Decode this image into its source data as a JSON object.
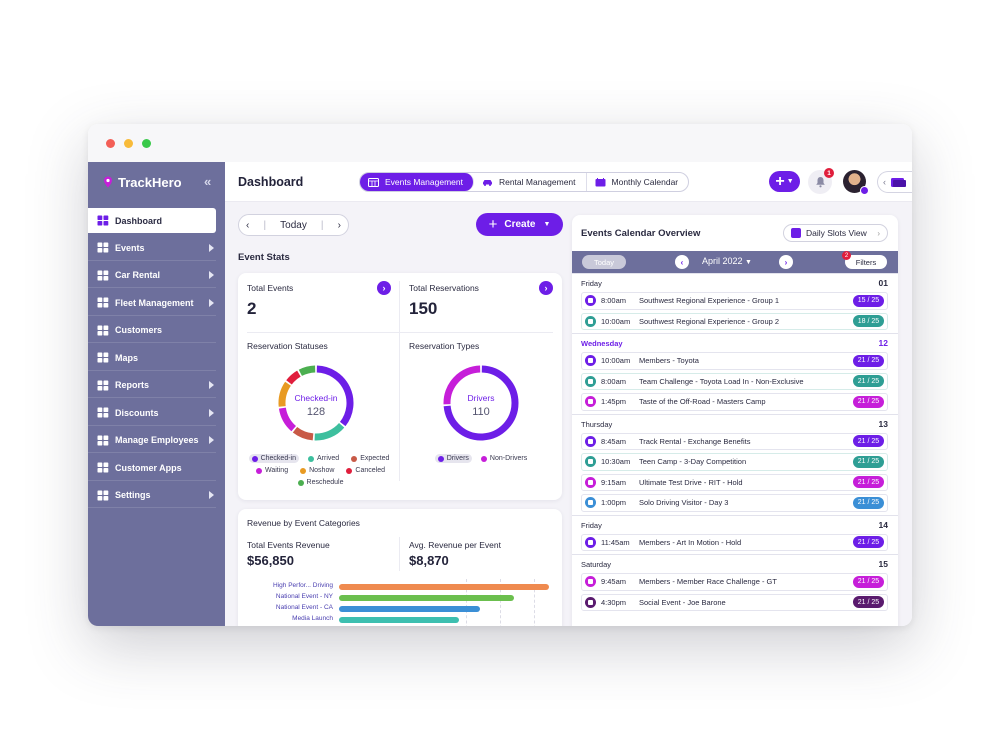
{
  "brand": "TrackHero",
  "sidebar": {
    "items": [
      {
        "label": "Dashboard",
        "icon": "grid-icon"
      },
      {
        "label": "Events",
        "icon": "calendar-icon"
      },
      {
        "label": "Car Rental",
        "icon": "car-icon"
      },
      {
        "label": "Fleet Management",
        "icon": "truck-icon"
      },
      {
        "label": "Customers",
        "icon": "users-icon"
      },
      {
        "label": "Maps",
        "icon": "map-icon"
      },
      {
        "label": "Reports",
        "icon": "chart-icon"
      },
      {
        "label": "Discounts",
        "icon": "tag-icon"
      },
      {
        "label": "Manage Employees",
        "icon": "org-icon"
      },
      {
        "label": "Customer Apps",
        "icon": "apps-icon"
      },
      {
        "label": "Settings",
        "icon": "gear-icon"
      }
    ]
  },
  "header": {
    "title": "Dashboard",
    "tabs": [
      "Events Management",
      "Rental Management",
      "Monthly Calendar"
    ],
    "notifications": "1"
  },
  "toolbar": {
    "date": "Today",
    "create": "Create"
  },
  "stats": {
    "section_title": "Event Stats",
    "total_events_label": "Total Events",
    "total_events": "2",
    "total_reservations_label": "Total Reservations",
    "total_reservations": "150",
    "statuses_title": "Reservation Statuses",
    "statuses_center_label": "Checked-in",
    "statuses_center_value": "128",
    "statuses_legend": [
      {
        "label": "Checked-in",
        "color": "#6d1ee7"
      },
      {
        "label": "Arrived",
        "color": "#3dbf9e"
      },
      {
        "label": "Expected",
        "color": "#c85a47"
      },
      {
        "label": "Waiting",
        "color": "#c61ed9"
      },
      {
        "label": "Noshow",
        "color": "#e89a22"
      },
      {
        "label": "Canceled",
        "color": "#e01e3c"
      },
      {
        "label": "Reschedule",
        "color": "#4caf50"
      }
    ],
    "types_title": "Reservation Types",
    "types_center_label": "Drivers",
    "types_center_value": "110",
    "types_legend": [
      {
        "label": "Drivers",
        "color": "#6d1ee7"
      },
      {
        "label": "Non-Drivers",
        "color": "#c61ed9"
      }
    ]
  },
  "revenue": {
    "title": "Revenue by Event Categories",
    "total_label": "Total Events Revenue",
    "total_value": "$56,850",
    "avg_label": "Avg. Revenue per Event",
    "avg_value": "$8,870",
    "bars": [
      {
        "label": "High Perfor... Driving",
        "value": 0.98,
        "color": "#ef8a4f"
      },
      {
        "label": "National Event - NY",
        "value": 0.82,
        "color": "#6bbf4e"
      },
      {
        "label": "National Event - CA",
        "value": 0.66,
        "color": "#3b8fd6"
      },
      {
        "label": "Media Launch",
        "value": 0.56,
        "color": "#3dbfb0"
      }
    ]
  },
  "calendar": {
    "title": "Events Calendar Overview",
    "view_button": "Daily Slots View",
    "today": "Today",
    "month": "April 2022",
    "filters": "Filters",
    "filters_badge": "2",
    "days": [
      {
        "name": "Friday",
        "date": "01",
        "events": [
          {
            "time": "8:00am",
            "name": "Southwest Regional Experience   -  Group 1",
            "count": "15 / 25",
            "color": "#6d1ee7"
          },
          {
            "time": "10:00am",
            "name": "Southwest Regional Experience   -  Group 2",
            "count": "18 / 25",
            "color": "#2e9e94"
          }
        ]
      },
      {
        "name": "Wednesday",
        "date": "12",
        "events": [
          {
            "time": "10:00am",
            "name": "Members    -  Toyota",
            "count": "21 / 25",
            "color": "#6d1ee7"
          },
          {
            "time": "8:00am",
            "name": "Team Challenge   -  Toyota Load In - Non-Exclusive",
            "count": "21 / 25",
            "color": "#2e9e94"
          },
          {
            "time": "1:45pm",
            "name": "Taste of the Off-Road   -  Masters Camp",
            "count": "21 / 25",
            "color": "#c61ed9"
          }
        ]
      },
      {
        "name": "Thursday",
        "date": "13",
        "events": [
          {
            "time": "8:45am",
            "name": "Track Rental   -  Exchange Benefits",
            "count": "21 / 25",
            "color": "#6d1ee7"
          },
          {
            "time": "10:30am",
            "name": "Teen Camp   -  3-Day Competition",
            "count": "21 / 25",
            "color": "#2e9e94"
          },
          {
            "time": "9:15am",
            "name": "Ultimate Test Drive   -  RIT - Hold",
            "count": "21 / 25",
            "color": "#c61ed9"
          },
          {
            "time": "1:00pm",
            "name": "Solo Driving Visitor   -  Day 3",
            "count": "21 / 25",
            "color": "#3b8fd6"
          }
        ]
      },
      {
        "name": "Friday",
        "date": "14",
        "events": [
          {
            "time": "11:45am",
            "name": "Members   -  Art In Motion - Hold",
            "count": "21 / 25",
            "color": "#6d1ee7"
          }
        ]
      },
      {
        "name": "Saturday",
        "date": "15",
        "events": [
          {
            "time": "9:45am",
            "name": "Members   -  Member Race Challenge - GT",
            "count": "21 / 25",
            "color": "#c61ed9"
          },
          {
            "time": "4:30pm",
            "name": "Social Event   -  Joe Barone",
            "count": "21 / 25",
            "color": "#5a1a6e"
          }
        ]
      }
    ]
  }
}
